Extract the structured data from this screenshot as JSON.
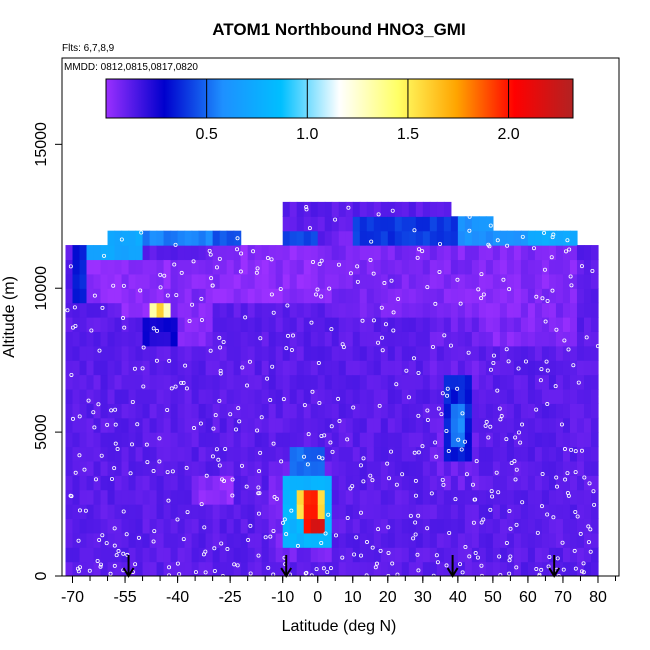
{
  "chart_data": {
    "type": "heatmap",
    "title": "ATOM1 Northbound HNO3_GMI",
    "flights_note": "Flts: 6,7,8,9",
    "dates_note": "MMDD: 0812,0815,0817,0820",
    "xlabel": "Latitude (deg N)",
    "ylabel": "Altitude (m)",
    "xlim": [
      -73,
      86
    ],
    "ylim": [
      0,
      18000
    ],
    "x_ticks": [
      -70,
      -55,
      -40,
      -25,
      -10,
      0,
      10,
      20,
      30,
      40,
      50,
      60,
      70,
      80
    ],
    "y_ticks": [
      0,
      5000,
      10000,
      15000
    ],
    "colorbar": {
      "range": [
        0,
        2.32
      ],
      "ticks": [
        0.5,
        1.0,
        1.5,
        2.0
      ],
      "tick_labels": [
        "0.5",
        "1.0",
        "1.5",
        "2.0"
      ],
      "colors": [
        "#9b30ff",
        "#0000cd",
        "#1e90ff",
        "#00bfff",
        "#ffffff",
        "#ffff66",
        "#ffa500",
        "#ff0000",
        "#b22222"
      ]
    },
    "cell_width_deg": 2,
    "cell_height_m": 500,
    "background_level": 0.12,
    "coverage": [
      {
        "x": [
          -72,
          -69
        ],
        "top": 11500
      },
      {
        "x": [
          -69,
          -60
        ],
        "top": 11500
      },
      {
        "x": [
          -60,
          -21
        ],
        "top": 12000
      },
      {
        "x": [
          -21,
          -9
        ],
        "top": 11500
      },
      {
        "x": [
          -9,
          39
        ],
        "top": 13000
      },
      {
        "x": [
          39,
          51
        ],
        "top": 12500
      },
      {
        "x": [
          51,
          64
        ],
        "top": 12000
      },
      {
        "x": [
          64,
          75
        ],
        "top": 12000
      },
      {
        "x": [
          75,
          81
        ],
        "top": 11500
      }
    ],
    "features": [
      {
        "x": [
          -66,
          -55
        ],
        "y": [
          9500,
          12000
        ],
        "level": 0.02
      },
      {
        "x": [
          -55,
          -42
        ],
        "y": [
          9000,
          11000
        ],
        "level": 0.02
      },
      {
        "x": [
          -42,
          -30
        ],
        "y": [
          8000,
          11000
        ],
        "level": 0.05
      },
      {
        "x": [
          -30,
          5
        ],
        "y": [
          9500,
          11500
        ],
        "level": 0.03
      },
      {
        "x": [
          5,
          40
        ],
        "y": [
          9000,
          12000
        ],
        "level": 0.06
      },
      {
        "x": [
          40,
          75
        ],
        "y": [
          8000,
          11500
        ],
        "level": 0.05
      },
      {
        "x": [
          -66,
          -50
        ],
        "y": [
          11000,
          12000
        ],
        "level": 0.72
      },
      {
        "x": [
          -50,
          -30
        ],
        "y": [
          11500,
          12000
        ],
        "level": 0.55
      },
      {
        "x": [
          -30,
          0
        ],
        "y": [
          11500,
          12000
        ],
        "level": 0.45
      },
      {
        "x": [
          10,
          40
        ],
        "y": [
          11500,
          12500
        ],
        "level": 0.4
      },
      {
        "x": [
          40,
          60
        ],
        "y": [
          11500,
          12500
        ],
        "level": 0.6
      },
      {
        "x": [
          60,
          78
        ],
        "y": [
          11500,
          12000
        ],
        "level": 0.75
      },
      {
        "x": [
          -70,
          -66
        ],
        "y": [
          9500,
          11500
        ],
        "level": 0.35
      },
      {
        "x": [
          -48,
          -42
        ],
        "y": [
          9000,
          9500
        ],
        "level": 1.3
      },
      {
        "x": [
          -46,
          -44
        ],
        "y": [
          9000,
          9500
        ],
        "level": 1.6
      },
      {
        "x": [
          -50,
          -40
        ],
        "y": [
          8000,
          9000
        ],
        "level": 0.25
      },
      {
        "x": [
          32,
          46
        ],
        "y": [
          3000,
          9000
        ],
        "level": 0.1
      },
      {
        "x": [
          36,
          44
        ],
        "y": [
          4000,
          7000
        ],
        "level": 0.35
      },
      {
        "x": [
          38,
          42
        ],
        "y": [
          4500,
          6000
        ],
        "level": 0.55
      },
      {
        "x": [
          -36,
          -24
        ],
        "y": [
          2500,
          3500
        ],
        "level": 0.03
      },
      {
        "x": [
          -14,
          4
        ],
        "y": [
          500,
          4000
        ],
        "level": 0.08
      },
      {
        "x": [
          -8,
          2
        ],
        "y": [
          3500,
          4500
        ],
        "level": 0.5
      },
      {
        "x": [
          -10,
          4
        ],
        "y": [
          1000,
          3500
        ],
        "level": 0.8
      },
      {
        "x": [
          -6,
          2
        ],
        "y": [
          2000,
          3000
        ],
        "level": 1.55
      },
      {
        "x": [
          -4,
          0
        ],
        "y": [
          1500,
          3000
        ],
        "level": 2.0
      },
      {
        "x": [
          -2,
          2
        ],
        "y": [
          1500,
          2000
        ],
        "level": 2.2
      }
    ],
    "arrows_x": [
      -54,
      -9,
      38.5,
      67.5
    ],
    "flight_point_count": 520
  }
}
